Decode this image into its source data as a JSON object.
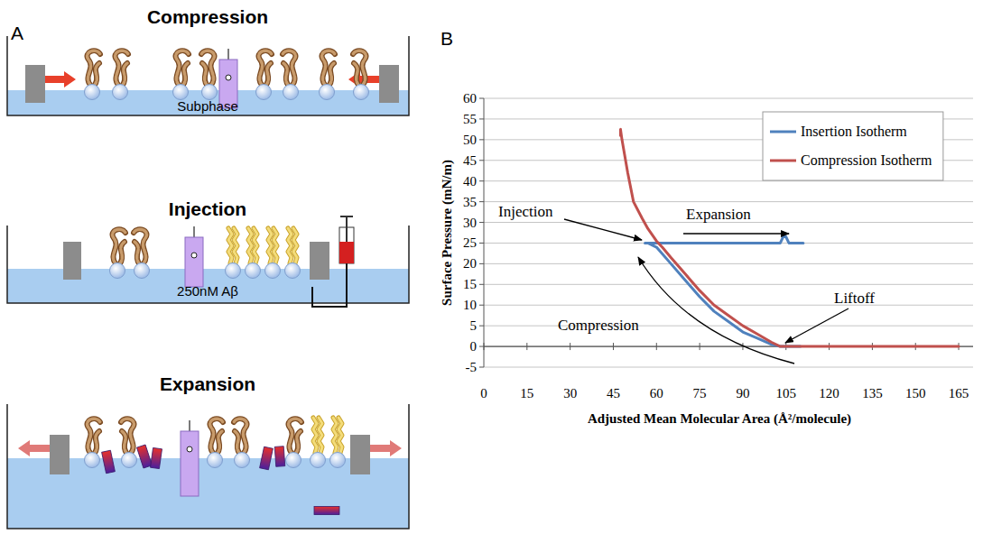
{
  "diagram": {
    "label": "A",
    "steps": [
      {
        "title": "Compression",
        "subphase": "Subphase"
      },
      {
        "title": "Injection",
        "subphase": "250nM Aβ"
      },
      {
        "title": "Expansion"
      }
    ]
  },
  "chart_data": {
    "label": "B",
    "type": "line",
    "x_label": "Adjusted Mean Molecular Area (Å²/molecule)",
    "y_label": "Surface Pressure (mN/m)",
    "xlim": [
      0,
      170
    ],
    "ylim": [
      -5,
      60
    ],
    "xticks": [
      0,
      15,
      30,
      45,
      60,
      75,
      90,
      105,
      120,
      135,
      150,
      165
    ],
    "yticks": [
      -5,
      0,
      5,
      10,
      15,
      20,
      25,
      30,
      35,
      40,
      45,
      50,
      55,
      60
    ],
    "grid": true,
    "legend": "upper right",
    "series": [
      {
        "name": "Insertion Isotherm",
        "color": "#4f81bd",
        "x": [
          110,
          103,
          100,
          95,
          90,
          85,
          80,
          75,
          70,
          65,
          60,
          57,
          56,
          60,
          70,
          80,
          90,
          100,
          103,
          104,
          105,
          106,
          111
        ],
        "values": [
          0,
          0,
          0.5,
          2,
          3.5,
          6,
          8.5,
          12,
          16,
          20,
          24,
          25,
          25,
          25,
          25,
          25,
          25,
          25,
          25,
          26.5,
          26.5,
          25,
          25
        ]
      },
      {
        "name": "Compression Isotherm",
        "color": "#c0504d",
        "x": [
          165,
          150,
          135,
          120,
          110,
          103,
          100,
          95,
          90,
          85,
          80,
          75,
          70,
          65,
          62,
          60,
          57,
          55,
          52,
          50,
          48,
          47.5,
          47.5
        ],
        "values": [
          0,
          0,
          0,
          0,
          0,
          0,
          1,
          3,
          5,
          7.5,
          10,
          13.5,
          17.5,
          21.5,
          24,
          25.5,
          28.5,
          31,
          35,
          42,
          50,
          52.5,
          51
        ]
      }
    ],
    "annotations": [
      "Injection",
      "Expansion",
      "Liftoff",
      "Compression"
    ]
  }
}
